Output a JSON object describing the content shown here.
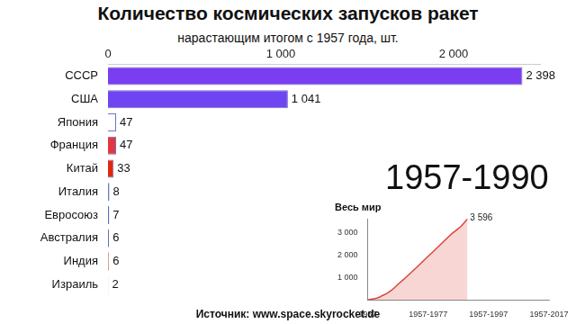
{
  "chart_data": [
    {
      "type": "bar",
      "title": "Количество космических запусков ракет",
      "subtitle": "нарастающим итогом с 1957 года, шт.",
      "orientation": "horizontal",
      "categories": [
        "СССР",
        "США",
        "Япония",
        "Франция",
        "Китай",
        "Италия",
        "Евросоюз",
        "Австралия",
        "Индия",
        "Израиль"
      ],
      "values": [
        2398,
        1041,
        47,
        47,
        33,
        8,
        7,
        6,
        6,
        2
      ],
      "value_labels": [
        "2 398",
        "1 041",
        "47",
        "47",
        "33",
        "8",
        "7",
        "6",
        "6",
        "2"
      ],
      "colors": [
        "#7a3df0",
        "#6f45f2",
        "#ffffff",
        "#e0383e",
        "#de2910",
        "#3a5fcd",
        "#1f3f9f",
        "#24348f",
        "#f08a3c",
        "#eef0ff"
      ],
      "data_labels": true,
      "xlim": [
        0,
        2500
      ],
      "xticks": [
        0,
        {
          "value": 1000,
          "label": "1 000"
        },
        {
          "value": 2000,
          "label": "2 000"
        }
      ],
      "grid": false
    },
    {
      "type": "line",
      "title": "Весь мир",
      "x": [
        1957,
        1958,
        1959,
        1960,
        1961,
        1962,
        1963,
        1964,
        1965,
        1966,
        1967,
        1968,
        1969,
        1970,
        1971,
        1972,
        1973,
        1974,
        1975,
        1976,
        1977,
        1978,
        1979,
        1980,
        1981,
        1982,
        1983,
        1984,
        1985,
        1986,
        1987,
        1988,
        1989,
        1990
      ],
      "values": [
        2,
        25,
        45,
        80,
        130,
        200,
        265,
        345,
        440,
        560,
        690,
        810,
        920,
        1045,
        1170,
        1295,
        1420,
        1545,
        1675,
        1805,
        1935,
        2060,
        2185,
        2315,
        2445,
        2575,
        2705,
        2835,
        2960,
        3060,
        3170,
        3290,
        3440,
        3596
      ],
      "color": "#d9453b",
      "xlim": [
        1957,
        2017
      ],
      "xticks": [
        1957,
        {
          "value": 1977,
          "label": "1957-1977"
        },
        {
          "value": 1997,
          "label": "1957-1997"
        },
        {
          "value": 2017,
          "label": "1957-2017"
        }
      ],
      "ylim": [
        0,
        3600
      ],
      "yticks": [
        {
          "value": 1000,
          "label": "1 000"
        },
        {
          "value": 2000,
          "label": "2 000"
        },
        {
          "value": 3000,
          "label": "3 000"
        }
      ],
      "grid": false,
      "annotations": [
        {
          "x": 1990,
          "y": 3596,
          "text": "3 596"
        }
      ]
    }
  ],
  "period": "1957-1990",
  "source": "Источник: www.space.skyrocket.de"
}
